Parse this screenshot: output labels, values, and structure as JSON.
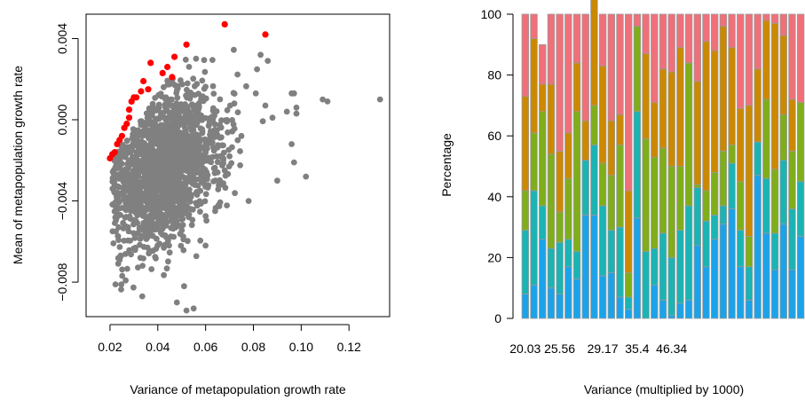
{
  "chart_data": [
    {
      "type": "scatter",
      "xlabel": "Variance of metapopulation growth rate",
      "ylabel": "Mean of metapopulation growth rate",
      "xlim": [
        0.01,
        0.137
      ],
      "ylim": [
        -0.0097,
        0.0052
      ],
      "xticks": [
        0.02,
        0.04,
        0.06,
        0.08,
        0.1,
        0.12
      ],
      "xtick_labels": [
        "0.02",
        "0.04",
        "0.06",
        "0.08",
        "0.10",
        "0.12"
      ],
      "yticks": [
        -0.008,
        -0.004,
        0.0,
        0.004
      ],
      "ytick_labels": [
        "−0.008",
        "−0.004",
        "0.000",
        "0.004"
      ],
      "colors": {
        "cloud": "#808080",
        "highlight": "#ff0000"
      },
      "series": [
        {
          "color": "#ff0000",
          "points": [
            [
              0.02,
              -0.0019
            ],
            [
              0.021,
              -0.0017
            ],
            [
              0.022,
              -0.0016
            ],
            [
              0.023,
              -0.0012
            ],
            [
              0.024,
              -0.001
            ],
            [
              0.025,
              -0.0008
            ],
            [
              0.026,
              -0.0004
            ],
            [
              0.027,
              -0.0002
            ],
            [
              0.028,
              0.0001
            ],
            [
              0.028,
              0.0005
            ],
            [
              0.029,
              0.0009
            ],
            [
              0.03,
              0.0011
            ],
            [
              0.031,
              0.0011
            ],
            [
              0.033,
              0.0014
            ],
            [
              0.034,
              0.0019
            ],
            [
              0.036,
              0.0015
            ],
            [
              0.037,
              0.0028
            ],
            [
              0.042,
              0.0023
            ],
            [
              0.044,
              0.0026
            ],
            [
              0.046,
              0.0021
            ],
            [
              0.047,
              0.0031
            ],
            [
              0.052,
              0.0037
            ],
            [
              0.068,
              0.0047
            ],
            [
              0.085,
              0.0042
            ]
          ]
        }
      ],
      "outliers": [
        [
          0.048,
          -0.009
        ],
        [
          0.052,
          -0.0094
        ],
        [
          0.055,
          -0.0093
        ],
        [
          0.051,
          -0.0082
        ],
        [
          0.06,
          -0.0062
        ],
        [
          0.064,
          -0.0045
        ],
        [
          0.068,
          -0.0025
        ],
        [
          0.07,
          -0.0018
        ],
        [
          0.075,
          -0.0008
        ],
        [
          0.072,
          0.0008
        ],
        [
          0.081,
          0.0013
        ],
        [
          0.083,
          0.0032
        ],
        [
          0.086,
          0.0029
        ],
        [
          0.096,
          0.0013
        ],
        [
          0.097,
          0.0013
        ],
        [
          0.098,
          0.0006
        ],
        [
          0.098,
          0.0003
        ],
        [
          0.094,
          0.0004
        ],
        [
          0.085,
          0.0007
        ],
        [
          0.088,
          0.0001
        ],
        [
          0.096,
          -0.0012
        ],
        [
          0.097,
          -0.0021
        ],
        [
          0.102,
          -0.0028
        ],
        [
          0.109,
          0.001
        ],
        [
          0.111,
          0.0009
        ],
        [
          0.133,
          0.001
        ],
        [
          0.09,
          -0.003
        ],
        [
          0.078,
          -0.004
        ]
      ]
    },
    {
      "type": "bar",
      "stacked": true,
      "xlabel": "Variance (multiplied by 1000)",
      "ylabel": "Percentage",
      "ylim": [
        0,
        100
      ],
      "yticks": [
        0,
        20,
        40,
        60,
        80,
        100
      ],
      "x_tick_labels": [
        "20.03",
        "25.56",
        "29.17",
        "35.4",
        "46.34"
      ],
      "x_tick_bar_index": [
        0,
        4,
        9,
        13,
        17
      ],
      "segment_colors": [
        "#1ba3ea",
        "#1ab4b4",
        "#7fae1a",
        "#cc8900",
        "#f0707a"
      ],
      "stacks": [
        [
          8,
          21,
          13,
          31,
          27
        ],
        [
          11,
          31,
          19,
          31,
          8
        ],
        [
          26,
          11,
          31,
          9,
          13
        ],
        [
          10,
          13,
          31,
          23,
          23
        ],
        [
          8,
          17,
          10,
          20,
          45
        ],
        [
          17,
          9,
          20,
          15,
          39
        ],
        [
          13,
          9,
          46,
          16,
          16
        ],
        [
          34,
          18,
          0,
          13,
          35
        ],
        [
          34,
          23,
          13,
          36,
          4
        ],
        [
          14,
          23,
          14,
          32,
          17
        ],
        [
          15,
          14,
          18,
          18,
          35
        ],
        [
          7,
          23,
          27,
          10,
          33
        ],
        [
          3,
          4,
          8,
          27,
          58
        ],
        [
          33,
          35,
          28,
          0,
          4
        ],
        [
          0,
          22,
          37,
          28,
          13
        ],
        [
          11,
          12,
          30,
          18,
          29
        ],
        [
          6,
          22,
          28,
          26,
          18
        ],
        [
          1,
          19,
          30,
          31,
          19
        ],
        [
          5,
          24,
          21,
          39,
          11
        ],
        [
          6,
          31,
          47,
          0,
          16
        ],
        [
          24,
          19,
          1,
          34,
          22
        ],
        [
          17,
          15,
          10,
          49,
          9
        ],
        [
          26,
          8,
          14,
          40,
          12
        ],
        [
          31,
          6,
          18,
          41,
          4
        ],
        [
          36,
          15,
          6,
          32,
          11
        ],
        [
          17,
          12,
          16,
          24,
          31
        ],
        [
          6,
          11,
          10,
          43,
          30
        ],
        [
          47,
          11,
          0,
          24,
          18
        ],
        [
          28,
          18,
          26,
          26,
          2
        ],
        [
          16,
          12,
          21,
          48,
          3
        ],
        [
          31,
          21,
          15,
          26,
          7
        ],
        [
          16,
          20,
          19,
          17,
          28
        ],
        [
          27,
          18,
          26,
          0,
          29
        ]
      ]
    }
  ]
}
